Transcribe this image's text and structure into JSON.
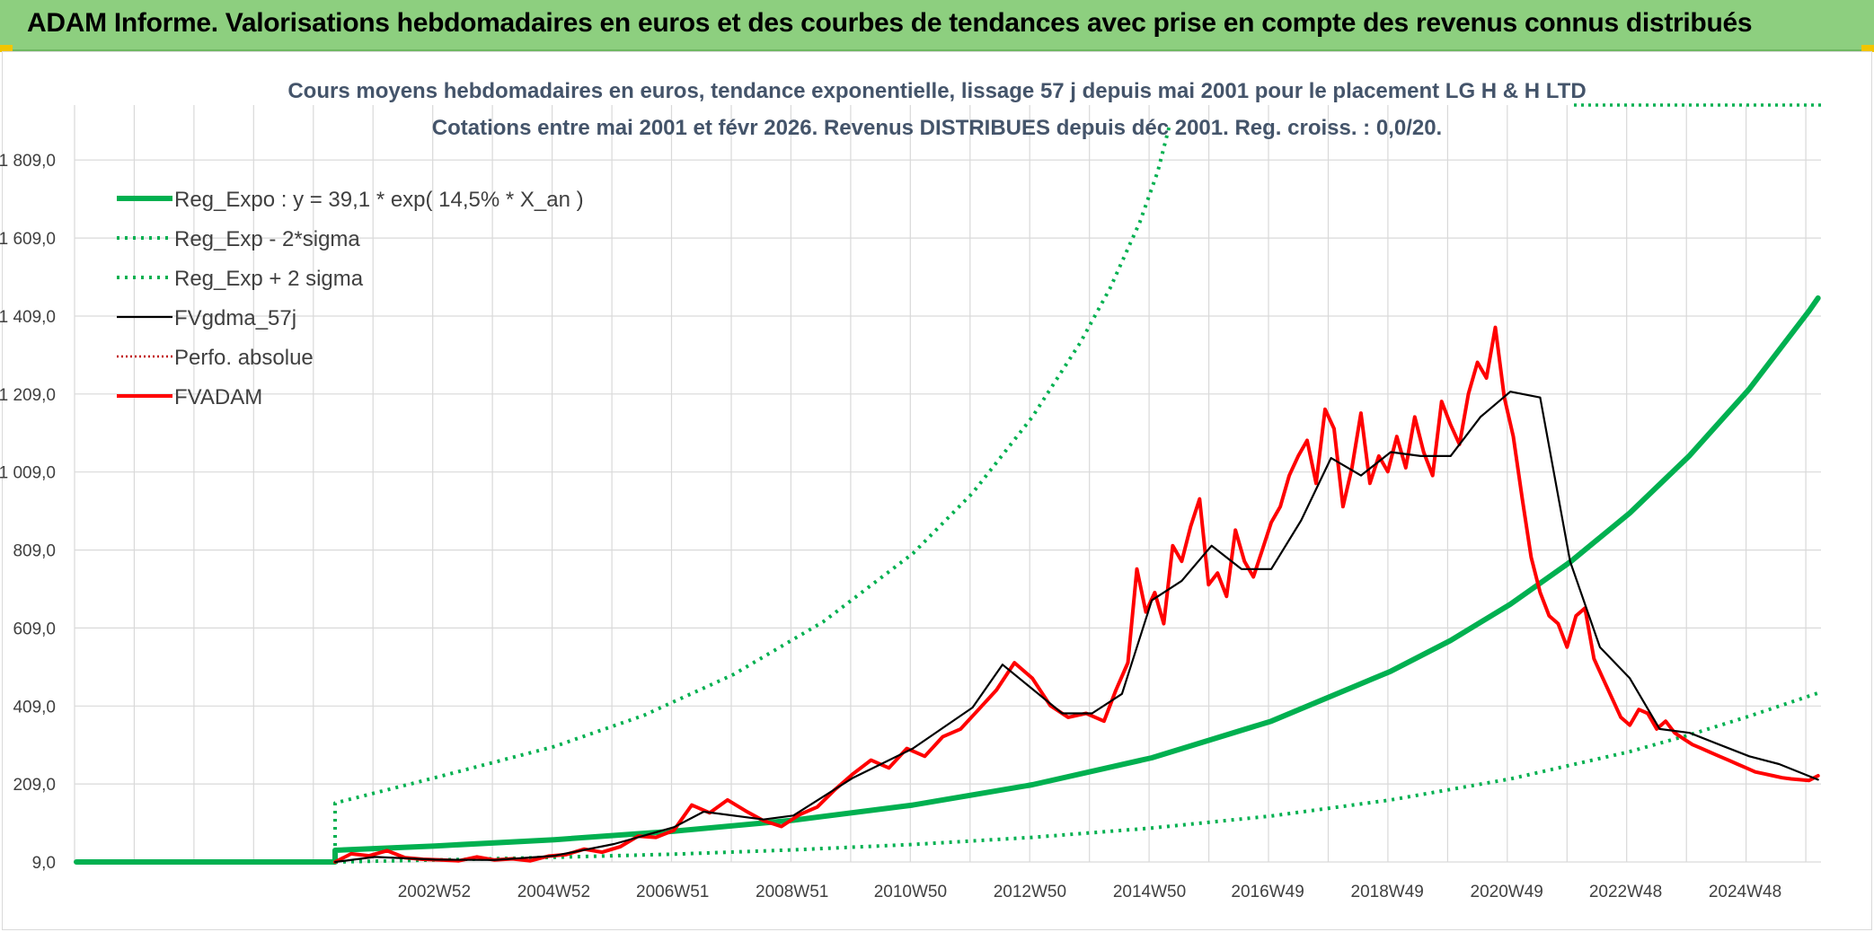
{
  "header": {
    "title": "ADAM Informe. Valorisations hebdomadaires en euros et des courbes de tendances avec prise en compte des revenus connus distribués"
  },
  "colors": {
    "banner": "#8dcf7f",
    "reg_expo": "#00b050",
    "fvadam": "#ff0000",
    "fvgdma": "#000000",
    "perfo": "#c00000",
    "grid": "#d9d9d9"
  },
  "chart_data": {
    "type": "line",
    "title": [
      "Cours moyens hebdomadaires en euros, tendance exponentielle, lissage 57 j depuis mai 2001 pour le placement LG H & H LTD",
      "Cotations entre mai 2001 et févr 2026. Revenus DISTRIBUES depuis déc 2001. Reg. croiss. : 0,0/20."
    ],
    "xlabel": "",
    "ylabel": "",
    "xlim": [
      1996.97,
      2026.2
    ],
    "ylim": [
      9,
      1950
    ],
    "y_ticks": [
      9,
      209,
      409,
      609,
      809,
      1009,
      1209,
      1409,
      1609,
      1809
    ],
    "y_tick_labels": [
      "9,0",
      "209,0",
      "409,0",
      "609,0",
      "809,0",
      "1 009,0",
      "1 209,0",
      "1 409,0",
      "1 609,0",
      "1 809,0"
    ],
    "x_tick_labels": [
      "2002W52",
      "2004W52",
      "2006W51",
      "2008W51",
      "2010W50",
      "2012W50",
      "2014W50",
      "2016W49",
      "2018W49",
      "2020W49",
      "2022W48",
      "2024W48"
    ],
    "x_tick_years": [
      2002.99,
      2004.99,
      2006.98,
      2008.98,
      2010.96,
      2012.96,
      2014.96,
      2016.94,
      2018.94,
      2020.94,
      2022.93,
      2024.93
    ],
    "grid": true,
    "legend_position": "top-left",
    "series": [
      {
        "name": "Reg_Expo : y = 39,1 * exp( 14,5% *  X_an )",
        "style": "solid-thick",
        "x": [
          1997.0,
          2001.33,
          2001.33,
          2003.0,
          2005.0,
          2007.0,
          2009.0,
          2011.0,
          2013.0,
          2015.0,
          2017.0,
          2019.0,
          2020.0,
          2021.0,
          2022.0,
          2023.0,
          2024.0,
          2025.0,
          2026.0,
          2026.15
        ],
        "y": [
          9,
          9,
          39,
          50,
          66,
          88,
          116,
          155,
          207,
          276,
          370,
          498,
          577,
          670,
          778,
          904,
          1051,
          1222,
          1422,
          1455
        ]
      },
      {
        "name": "Reg_Exp - 2*sigma",
        "style": "dotted",
        "x": [
          2001.33,
          2003.0,
          2005.0,
          2007.0,
          2009.0,
          2011.0,
          2013.0,
          2015.0,
          2017.0,
          2019.0,
          2021.0,
          2023.0,
          2024.0,
          2025.0,
          2026.15
        ],
        "y": [
          9,
          14,
          21,
          29,
          40,
          54,
          72,
          96,
          127,
          168,
          222,
          292,
          335,
          383,
          442
        ]
      },
      {
        "name": "Reg_Exp + 2 sigma",
        "style": "dotted",
        "x": [
          2001.33,
          2001.33,
          2003.0,
          2005.0,
          2006.5,
          2008.0,
          2009.5,
          2011.0,
          2012.0,
          2013.0,
          2013.8,
          2014.3,
          2014.8,
          2015.1,
          2015.3
        ],
        "y": [
          9,
          160,
          225,
          305,
          385,
          490,
          625,
          800,
          955,
          1150,
          1340,
          1480,
          1650,
          1780,
          1900
        ]
      },
      {
        "name": "FVgdma_57j",
        "style": "solid-thin",
        "x": [
          2001.33,
          2002.0,
          2003.0,
          2004.0,
          2005.0,
          2006.0,
          2007.0,
          2007.5,
          2008.5,
          2009.0,
          2010.0,
          2011.0,
          2012.0,
          2012.5,
          2013.5,
          2014.0,
          2014.5,
          2015.0,
          2015.5,
          2016.0,
          2016.5,
          2017.0,
          2017.5,
          2018.0,
          2018.5,
          2019.0,
          2019.5,
          2020.0,
          2020.5,
          2021.0,
          2021.5,
          2022.0,
          2022.5,
          2023.0,
          2023.5,
          2024.0,
          2024.5,
          2025.0,
          2025.5,
          2026.15
        ],
        "y": [
          9,
          22,
          15,
          14,
          25,
          55,
          98,
          138,
          118,
          128,
          225,
          300,
          405,
          515,
          390,
          390,
          440,
          680,
          730,
          820,
          760,
          760,
          885,
          1045,
          1000,
          1060,
          1050,
          1050,
          1150,
          1215,
          1200,
          780,
          560,
          480,
          350,
          340,
          310,
          280,
          260,
          220
        ]
      },
      {
        "name": "Perfo. absolue",
        "style": "dotted-thin",
        "x": [],
        "y": []
      },
      {
        "name": "FVADAM",
        "style": "solid-medium",
        "x": [
          2001.33,
          2001.6,
          2001.9,
          2002.2,
          2002.5,
          2002.8,
          2003.1,
          2003.4,
          2003.7,
          2004.0,
          2004.3,
          2004.6,
          2004.9,
          2005.2,
          2005.5,
          2005.8,
          2006.1,
          2006.4,
          2006.7,
          2007.0,
          2007.3,
          2007.6,
          2007.9,
          2008.2,
          2008.5,
          2008.8,
          2009.1,
          2009.4,
          2009.7,
          2010.0,
          2010.3,
          2010.6,
          2010.9,
          2011.2,
          2011.5,
          2011.8,
          2012.1,
          2012.4,
          2012.7,
          2013.0,
          2013.3,
          2013.6,
          2013.9,
          2014.2,
          2014.4,
          2014.6,
          2014.75,
          2014.9,
          2015.05,
          2015.2,
          2015.35,
          2015.5,
          2015.65,
          2015.8,
          2015.95,
          2016.1,
          2016.25,
          2016.4,
          2016.55,
          2016.7,
          2016.85,
          2017.0,
          2017.15,
          2017.3,
          2017.45,
          2017.6,
          2017.75,
          2017.9,
          2018.05,
          2018.2,
          2018.35,
          2018.5,
          2018.65,
          2018.8,
          2018.95,
          2019.1,
          2019.25,
          2019.4,
          2019.55,
          2019.7,
          2019.85,
          2020.0,
          2020.15,
          2020.3,
          2020.45,
          2020.6,
          2020.75,
          2020.9,
          2021.05,
          2021.2,
          2021.35,
          2021.5,
          2021.65,
          2021.8,
          2021.95,
          2022.1,
          2022.25,
          2022.4,
          2022.55,
          2022.7,
          2022.85,
          2023.0,
          2023.15,
          2023.3,
          2023.45,
          2023.6,
          2023.75,
          2023.9,
          2024.05,
          2024.2,
          2024.35,
          2024.5,
          2024.65,
          2024.8,
          2024.95,
          2025.1,
          2025.25,
          2025.4,
          2025.55,
          2025.7,
          2025.85,
          2026.0,
          2026.15
        ],
        "y": [
          9,
          30,
          25,
          38,
          20,
          16,
          14,
          12,
          22,
          14,
          17,
          12,
          24,
          28,
          42,
          34,
          48,
          75,
          72,
          90,
          155,
          135,
          168,
          140,
          115,
          100,
          130,
          150,
          195,
          235,
          270,
          250,
          300,
          280,
          330,
          350,
          400,
          450,
          520,
          480,
          410,
          380,
          390,
          370,
          450,
          520,
          760,
          650,
          700,
          620,
          820,
          780,
          870,
          940,
          720,
          750,
          690,
          860,
          780,
          740,
          810,
          880,
          920,
          1000,
          1050,
          1090,
          980,
          1170,
          1120,
          920,
          1020,
          1160,
          980,
          1050,
          1010,
          1100,
          1020,
          1150,
          1060,
          1000,
          1190,
          1130,
          1080,
          1210,
          1290,
          1250,
          1380,
          1200,
          1100,
          940,
          790,
          700,
          640,
          620,
          560,
          640,
          660,
          530,
          480,
          430,
          380,
          360,
          400,
          390,
          350,
          370,
          340,
          325,
          310,
          300,
          290,
          280,
          270,
          260,
          250,
          240,
          235,
          230,
          225,
          222,
          220,
          218,
          230
        ]
      }
    ]
  }
}
